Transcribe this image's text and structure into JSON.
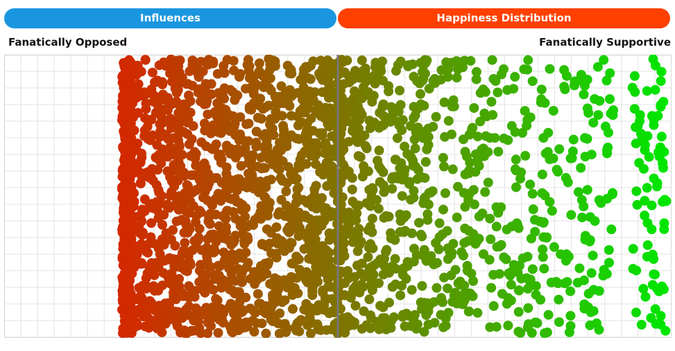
{
  "tabs": [
    {
      "label": "Influences"
    },
    {
      "label": "Happiness Distribution"
    }
  ],
  "axis": {
    "left_label": "Fanatically Opposed",
    "right_label": "Fanatically Supportive"
  }
}
